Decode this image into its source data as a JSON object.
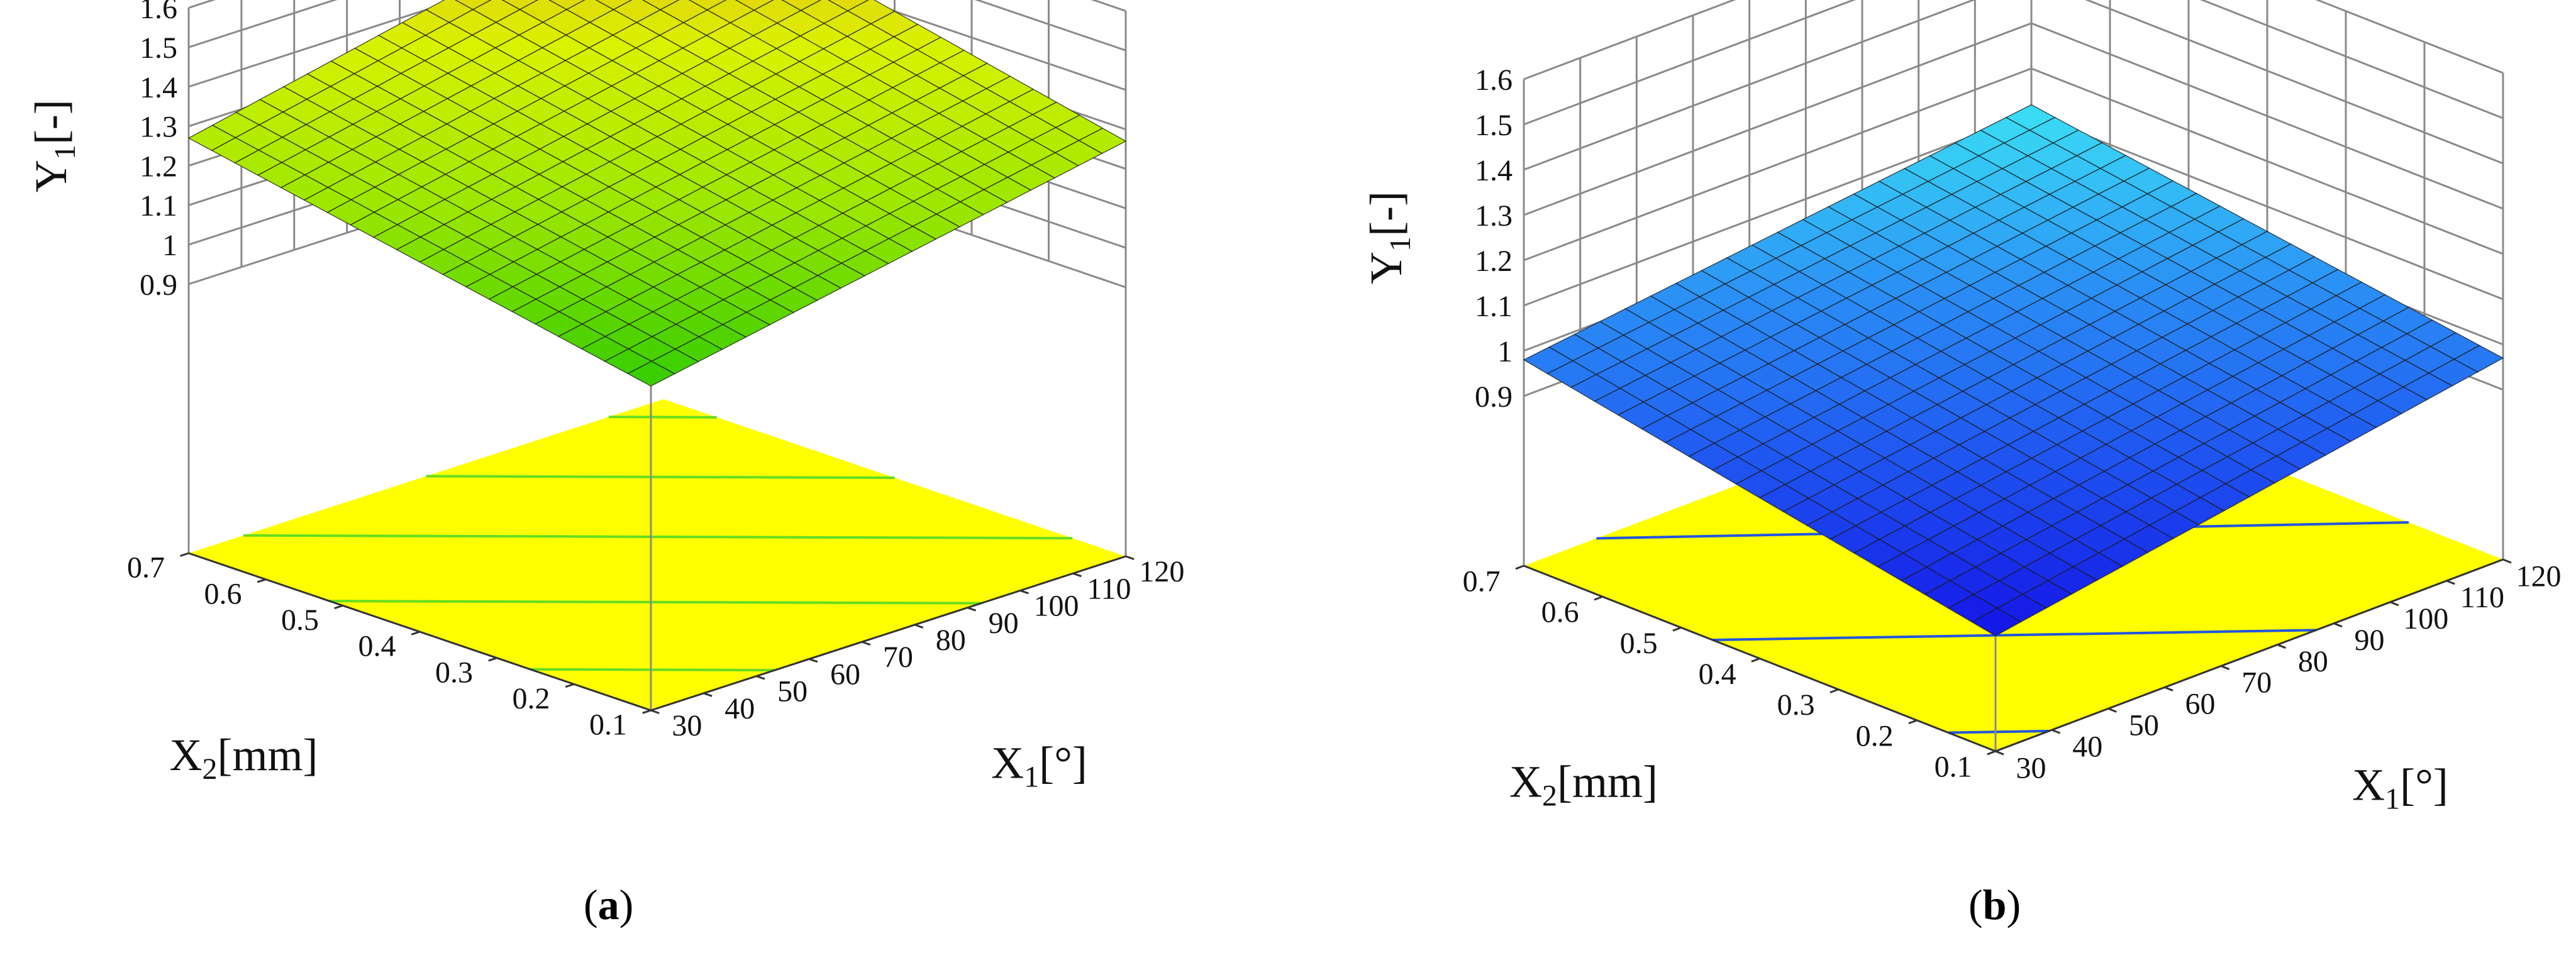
{
  "chart_data": [
    {
      "type": "surface",
      "panel_label": "a",
      "xlabel_main": "X",
      "xlabel_sub": "1",
      "xlabel_unit": "[°]",
      "ylabel_main": "X",
      "ylabel_sub": "2",
      "ylabel_unit": "[mm]",
      "zlabel_main": "Y",
      "zlabel_sub": "1",
      "zlabel_unit": "[-]",
      "x_ticks": [
        "30",
        "40",
        "50",
        "60",
        "70",
        "80",
        "90",
        "100",
        "110",
        "120"
      ],
      "y_ticks": [
        "0.1",
        "0.2",
        "0.3",
        "0.4",
        "0.5",
        "0.6",
        "0.7"
      ],
      "z_ticks": [
        "0.9",
        "1",
        "1.1",
        "1.2",
        "1.3",
        "1.4",
        "1.5",
        "1.6"
      ],
      "xlim": [
        30,
        120
      ],
      "ylim": [
        0.1,
        0.7
      ],
      "zlim": [
        0.9,
        1.6
      ],
      "surface_corners": {
        "x_min_y_min": 1.04,
        "x_max_y_min": 1.27,
        "x_min_y_max": 1.27,
        "x_max_y_max": 1.53
      },
      "grid": true,
      "surface_colormap": [
        "#33cc00",
        "#99e600",
        "#d9f200",
        "#f5a41e"
      ],
      "contour_floor_color": "#ffff00",
      "contour_line_color": "#66dd22"
    },
    {
      "type": "surface",
      "panel_label": "b",
      "xlabel_main": "X",
      "xlabel_sub": "1",
      "xlabel_unit": "[°]",
      "ylabel_main": "X",
      "ylabel_sub": "2",
      "ylabel_unit": "[mm]",
      "zlabel_main": "Y",
      "zlabel_sub": "1",
      "zlabel_unit": "[-]",
      "x_ticks": [
        "30",
        "40",
        "50",
        "60",
        "70",
        "80",
        "90",
        "100",
        "110",
        "120"
      ],
      "y_ticks": [
        "0.1",
        "0.2",
        "0.3",
        "0.4",
        "0.5",
        "0.6",
        "0.7"
      ],
      "z_ticks": [
        "0.9",
        "1",
        "1.1",
        "1.2",
        "1.3",
        "1.4",
        "1.5",
        "1.6"
      ],
      "xlim": [
        30,
        120
      ],
      "ylim": [
        0.1,
        0.7
      ],
      "zlim": [
        0.9,
        1.6
      ],
      "surface_corners": {
        "x_min_y_min": 0.78,
        "x_max_y_min": 0.97,
        "x_min_y_max": 0.98,
        "x_max_y_max": 1.12
      },
      "grid": true,
      "surface_colormap": [
        "#1414e6",
        "#1e50f0",
        "#2a8cf5",
        "#3ae0f5"
      ],
      "contour_floor_color": "#ffff00",
      "contour_line_color": "#2255dd"
    }
  ]
}
